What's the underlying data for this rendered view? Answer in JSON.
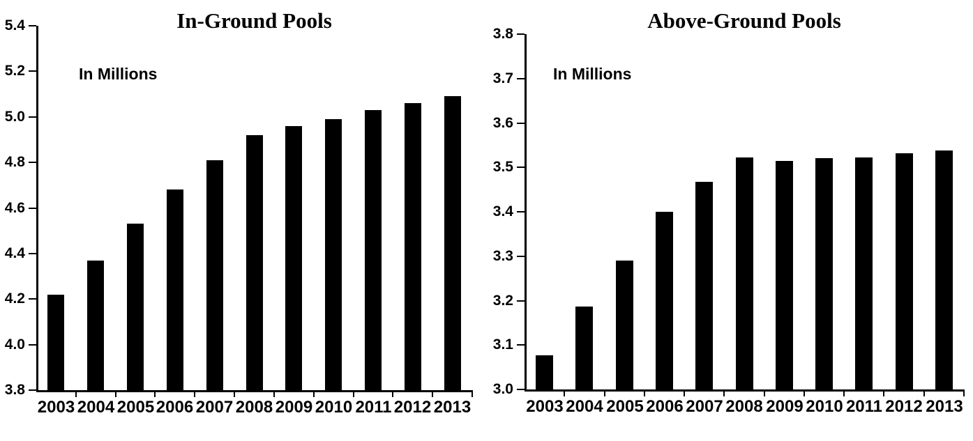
{
  "figure": {
    "background": "#ffffff",
    "text_color": "#000000"
  },
  "chart_data": [
    {
      "type": "bar",
      "title": "In-Ground Pools",
      "units_label": "In Millions",
      "xlabel": "",
      "ylabel": "",
      "categories": [
        "2003",
        "2004",
        "2005",
        "2006",
        "2007",
        "2008",
        "2009",
        "2010",
        "2011",
        "2012",
        "2013"
      ],
      "values": [
        4.22,
        4.37,
        4.53,
        4.68,
        4.81,
        4.92,
        4.96,
        4.99,
        5.03,
        5.06,
        5.09
      ],
      "ylim": [
        3.8,
        5.4
      ],
      "ytick_step": 0.2,
      "ytick_labels": [
        "5.4",
        "5.2",
        "5.0",
        "4.8",
        "4.6",
        "4.4",
        "4.2",
        "4.0",
        "3.8"
      ],
      "grid": false,
      "legend": "none",
      "bar_color": "#000000"
    },
    {
      "type": "bar",
      "title": "Above-Ground Pools",
      "units_label": "In Millions",
      "xlabel": "",
      "ylabel": "",
      "categories": [
        "2003",
        "2004",
        "2005",
        "2006",
        "2007",
        "2008",
        "2009",
        "2010",
        "2011",
        "2012",
        "2013"
      ],
      "values": [
        3.077,
        3.187,
        3.29,
        3.4,
        3.468,
        3.523,
        3.514,
        3.52,
        3.523,
        3.531,
        3.538
      ],
      "ylim": [
        3.0,
        3.8
      ],
      "ytick_step": 0.1,
      "ytick_labels": [
        "3.8",
        "3.7",
        "3.6",
        "3.5",
        "3.4",
        "3.3",
        "3.2",
        "3.1",
        "3.0"
      ],
      "grid": false,
      "legend": "none",
      "bar_color": "#000000"
    }
  ]
}
